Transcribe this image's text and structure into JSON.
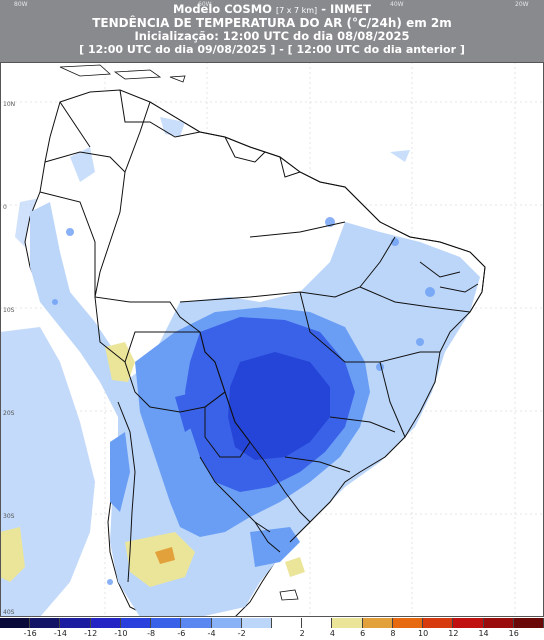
{
  "header": {
    "line1_main": "Modelo COSMO",
    "line1_res": "[7 x 7 km]",
    "line1_tail": "- INMET",
    "line2": "TENDÊNCIA DE TEMPERATURA DO AR (°C/24h) em 2m",
    "line3": "Inicialização: 12:00 UTC do dia 08/08/2025",
    "line4": "[ 12:00 UTC do dia 09/08/2025 ] - [ 12:00 UTC do dia anterior ]"
  },
  "longitude_labels": [
    "80W",
    "60W",
    "40W",
    "20W"
  ],
  "latitude_labels": [
    "10N",
    "0",
    "10S",
    "20S",
    "30S",
    "40S"
  ],
  "colors": {
    "header_bg": "#888a8e",
    "ocean": "#ffffff",
    "land_neutral": "#ffffff",
    "border": "#111111",
    "light_blue": "#a8d0f5",
    "mid_blue": "#6a9ef5",
    "strong_blue": "#3660ea",
    "deep_blue": "#2545d8",
    "yellow": "#e8df8a",
    "orange": "#e2a13a"
  },
  "legend": {
    "colors": [
      "#0a0a3a",
      "#141466",
      "#1c1ca0",
      "#2424c4",
      "#2a40dc",
      "#3a62e8",
      "#5a88f0",
      "#8ab2f6",
      "#bcd6fa",
      "#ffffff",
      "#ffffff",
      "#ebe59a",
      "#e2a13a",
      "#e86a10",
      "#d83a10",
      "#c01010",
      "#9a0c0c",
      "#6a0808"
    ],
    "ticks": [
      "-16",
      "-14",
      "-12",
      "-10",
      "-8",
      "-6",
      "-4",
      "-2",
      "2",
      "4",
      "6",
      "8",
      "10",
      "12",
      "14",
      "16"
    ]
  }
}
